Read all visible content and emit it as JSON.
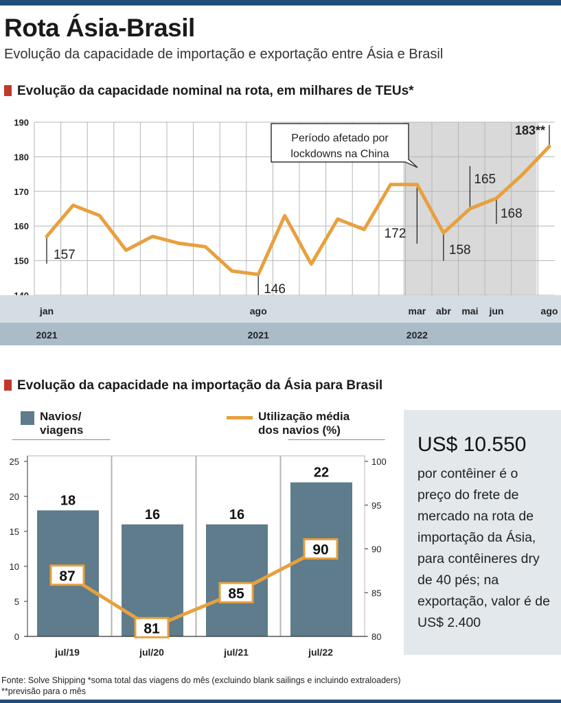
{
  "header": {
    "title": "Rota Ásia-Brasil",
    "subtitle": "Evolução da capacidade de importação e exportação entre Ásia e Brasil"
  },
  "section1": {
    "title": "Evolução da capacidade nominal na rota, em milhares de TEUs*",
    "callout": [
      "Período afetado por",
      "lockdowns na China"
    ]
  },
  "section2": {
    "title": "Evolução da capacidade na importação da Ásia para Brasil",
    "legend_bars": [
      "Navios/",
      "viagens"
    ],
    "legend_line": [
      "Utilização média",
      "dos navios (%)"
    ]
  },
  "side_panel": {
    "amount": "US$ 10.550",
    "text": "por contêiner é o preço do frete de mercado na rota de importação da Ásia, para contêineres dry de 40 pés; na exportação, valor é de US$ 2.400"
  },
  "footer": {
    "line1": "Fonte: Solve Shipping *soma total das viagens do mês (excluindo blank sailings e incluindo extraloaders)",
    "line2": "**previsão para o mês"
  },
  "colors": {
    "line": "#e8a03e",
    "bar": "#5e7c8b",
    "shade": "#d9d9d9",
    "axis_band": "#d4dde3",
    "year_band": "#a9bcc7",
    "accent": "#c0392b"
  },
  "chart_data": [
    {
      "type": "line",
      "title": "Evolução da capacidade nominal na rota, em milhares de TEUs*",
      "ylim": [
        140,
        190
      ],
      "yticks": [
        140,
        150,
        160,
        170,
        180,
        190
      ],
      "x": [
        0,
        1,
        2,
        3,
        4,
        5,
        6,
        7,
        8,
        9,
        10,
        11,
        12,
        13,
        14,
        15,
        16,
        17,
        18,
        19
      ],
      "values": [
        157,
        166,
        163,
        153,
        157,
        155,
        154,
        147,
        146,
        163,
        149,
        162,
        159,
        172,
        172,
        158,
        165,
        168,
        175,
        183
      ],
      "labels": [
        {
          "i": 0,
          "text": "157"
        },
        {
          "i": 8,
          "text": "146"
        },
        {
          "i": 14,
          "text": "172"
        },
        {
          "i": 15,
          "text": "158"
        },
        {
          "i": 16,
          "text": "165"
        },
        {
          "i": 17,
          "text": "168"
        },
        {
          "i": 19,
          "text": "183**"
        }
      ],
      "month_ticks": [
        {
          "i": 0,
          "text": "jan"
        },
        {
          "i": 8,
          "text": "ago"
        },
        {
          "i": 14,
          "text": "mar"
        },
        {
          "i": 15,
          "text": "abr"
        },
        {
          "i": 16,
          "text": "mai"
        },
        {
          "i": 17,
          "text": "jun"
        },
        {
          "i": 19,
          "text": "ago"
        }
      ],
      "year_ticks": [
        {
          "i": 0,
          "text": "2021"
        },
        {
          "i": 8,
          "text": "2021"
        },
        {
          "i": 14,
          "text": "2022"
        }
      ],
      "shaded_range": [
        14,
        18
      ]
    },
    {
      "type": "bar+line",
      "categories": [
        "jul/19",
        "jul/20",
        "jul/21",
        "jul/22"
      ],
      "series": [
        {
          "name": "Navios/viagens",
          "values": [
            18,
            16,
            16,
            22
          ],
          "axis": "left",
          "ylim": [
            0,
            25
          ],
          "yticks": [
            0,
            5,
            10,
            15,
            20,
            25
          ]
        },
        {
          "name": "Utilização média dos navios (%)",
          "values": [
            87,
            81,
            85,
            90
          ],
          "axis": "right",
          "ylim": [
            80,
            100
          ],
          "yticks": [
            80,
            85,
            90,
            95,
            100
          ]
        }
      ]
    }
  ]
}
